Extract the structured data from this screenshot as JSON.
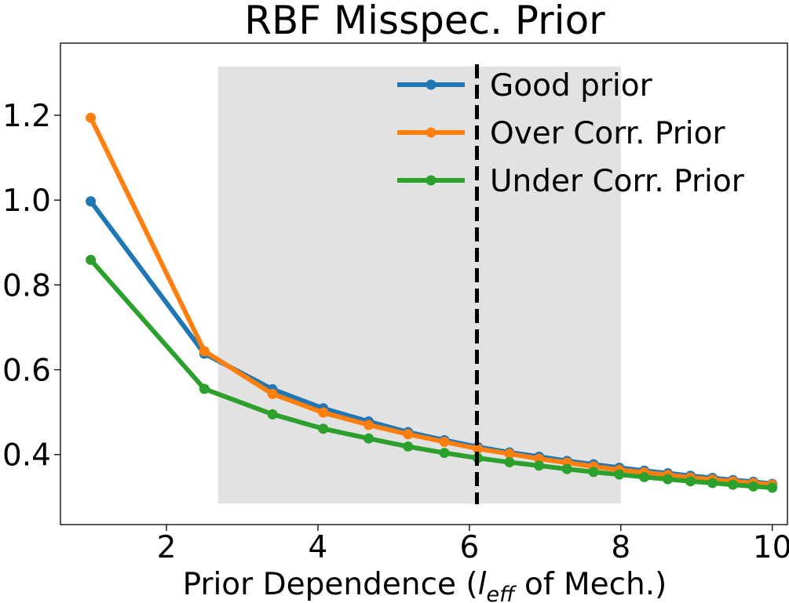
{
  "chart_data": {
    "type": "line",
    "title": "RBF Misspec. Prior",
    "xlabel_pre": "Prior Dependence (",
    "xlabel_l": "l",
    "xlabel_sub": "eff",
    "xlabel_post": " of Mech.)",
    "ylabel": "",
    "xlim": [
      0.6,
      10.2
    ],
    "ylim": [
      0.235,
      1.37
    ],
    "xticks": [
      2,
      4,
      6,
      8,
      10
    ],
    "yticks": [
      0.4,
      0.6,
      0.8,
      1.0,
      1.2
    ],
    "shaded_region": {
      "x_start": 2.68,
      "x_end": 8.0,
      "y_start": 0.285,
      "y_end": 1.315,
      "color": "#e2e2e2"
    },
    "vline": {
      "x": 6.1,
      "style": "dashed",
      "color": "#000000"
    },
    "legend_position": "top-right",
    "series": [
      {
        "name": "Good prior",
        "color": "#1f77b4",
        "x": [
          1.0,
          2.5,
          3.4,
          4.07,
          4.67,
          5.19,
          5.67,
          6.11,
          6.53,
          6.92,
          7.29,
          7.64,
          7.98,
          8.31,
          8.62,
          8.92,
          9.21,
          9.48,
          9.75,
          10.0
        ],
        "y": [
          0.997,
          0.638,
          0.554,
          0.509,
          0.478,
          0.453,
          0.434,
          0.418,
          0.405,
          0.395,
          0.385,
          0.377,
          0.369,
          0.362,
          0.356,
          0.35,
          0.345,
          0.34,
          0.336,
          0.331
        ]
      },
      {
        "name": "Over Corr. Prior",
        "color": "#ff7f0e",
        "x": [
          1.0,
          2.5,
          3.4,
          4.07,
          4.67,
          5.19,
          5.67,
          6.11,
          6.53,
          6.92,
          7.29,
          7.64,
          7.98,
          8.31,
          8.62,
          8.92,
          9.21,
          9.48,
          9.75,
          10.0
        ],
        "y": [
          1.194,
          0.644,
          0.543,
          0.499,
          0.47,
          0.448,
          0.43,
          0.414,
          0.402,
          0.39,
          0.381,
          0.372,
          0.364,
          0.358,
          0.352,
          0.346,
          0.341,
          0.337,
          0.333,
          0.329
        ]
      },
      {
        "name": "Under Corr. Prior",
        "color": "#2ca02c",
        "x": [
          1.0,
          2.5,
          3.4,
          4.07,
          4.67,
          5.19,
          5.67,
          6.11,
          6.53,
          6.92,
          7.29,
          7.64,
          7.98,
          8.31,
          8.62,
          8.92,
          9.21,
          9.48,
          9.75,
          10.0
        ],
        "y": [
          0.859,
          0.555,
          0.495,
          0.461,
          0.438,
          0.419,
          0.404,
          0.392,
          0.382,
          0.374,
          0.366,
          0.359,
          0.353,
          0.347,
          0.342,
          0.337,
          0.333,
          0.329,
          0.325,
          0.322
        ]
      }
    ]
  }
}
